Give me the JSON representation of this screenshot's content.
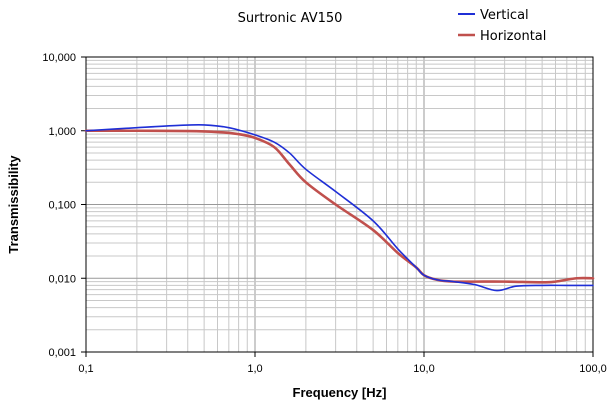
{
  "chart_data": {
    "type": "line",
    "title": "Surtronic AV150",
    "xlabel": "Frequency [Hz]",
    "ylabel": "Transmissibility",
    "x_scale": "log",
    "y_scale": "log",
    "xlim": [
      0.1,
      100
    ],
    "ylim": [
      0.001,
      10
    ],
    "x_tick_values": [
      0.1,
      1,
      10,
      100
    ],
    "x_tick_labels": [
      "0,1",
      "1,0",
      "10,0",
      "100,0"
    ],
    "y_tick_values": [
      0.001,
      0.01,
      0.1,
      1,
      10
    ],
    "y_tick_labels": [
      "0,001",
      "0,010",
      "0,100",
      "1,000",
      "10,000"
    ],
    "grid": true,
    "legend_position": "top-right",
    "series": [
      {
        "name": "Vertical",
        "color": "#1f2fd6",
        "x": [
          0.1,
          0.2,
          0.35,
          0.5,
          0.7,
          1.0,
          1.3,
          1.6,
          2.0,
          3.0,
          5.0,
          7.0,
          9.0,
          10.0,
          12.0,
          15.0,
          20.0,
          27.0,
          35.0,
          50.0,
          70.0,
          100.0
        ],
        "y": [
          1.0,
          1.1,
          1.18,
          1.2,
          1.1,
          0.88,
          0.7,
          0.5,
          0.3,
          0.15,
          0.06,
          0.025,
          0.014,
          0.011,
          0.0095,
          0.009,
          0.0082,
          0.0068,
          0.0078,
          0.008,
          0.008,
          0.008
        ]
      },
      {
        "name": "Horizontal",
        "color": "#c0504d",
        "x": [
          0.1,
          0.2,
          0.4,
          0.6,
          0.8,
          1.0,
          1.3,
          1.6,
          2.0,
          3.0,
          5.0,
          7.0,
          9.0,
          10.0,
          12.0,
          15.0,
          20.0,
          30.0,
          50.0,
          60.0,
          80.0,
          100.0
        ],
        "y": [
          1.0,
          1.0,
          0.99,
          0.96,
          0.9,
          0.8,
          0.6,
          0.35,
          0.2,
          0.1,
          0.045,
          0.022,
          0.014,
          0.011,
          0.0095,
          0.009,
          0.009,
          0.009,
          0.0088,
          0.009,
          0.01,
          0.01
        ]
      }
    ]
  }
}
